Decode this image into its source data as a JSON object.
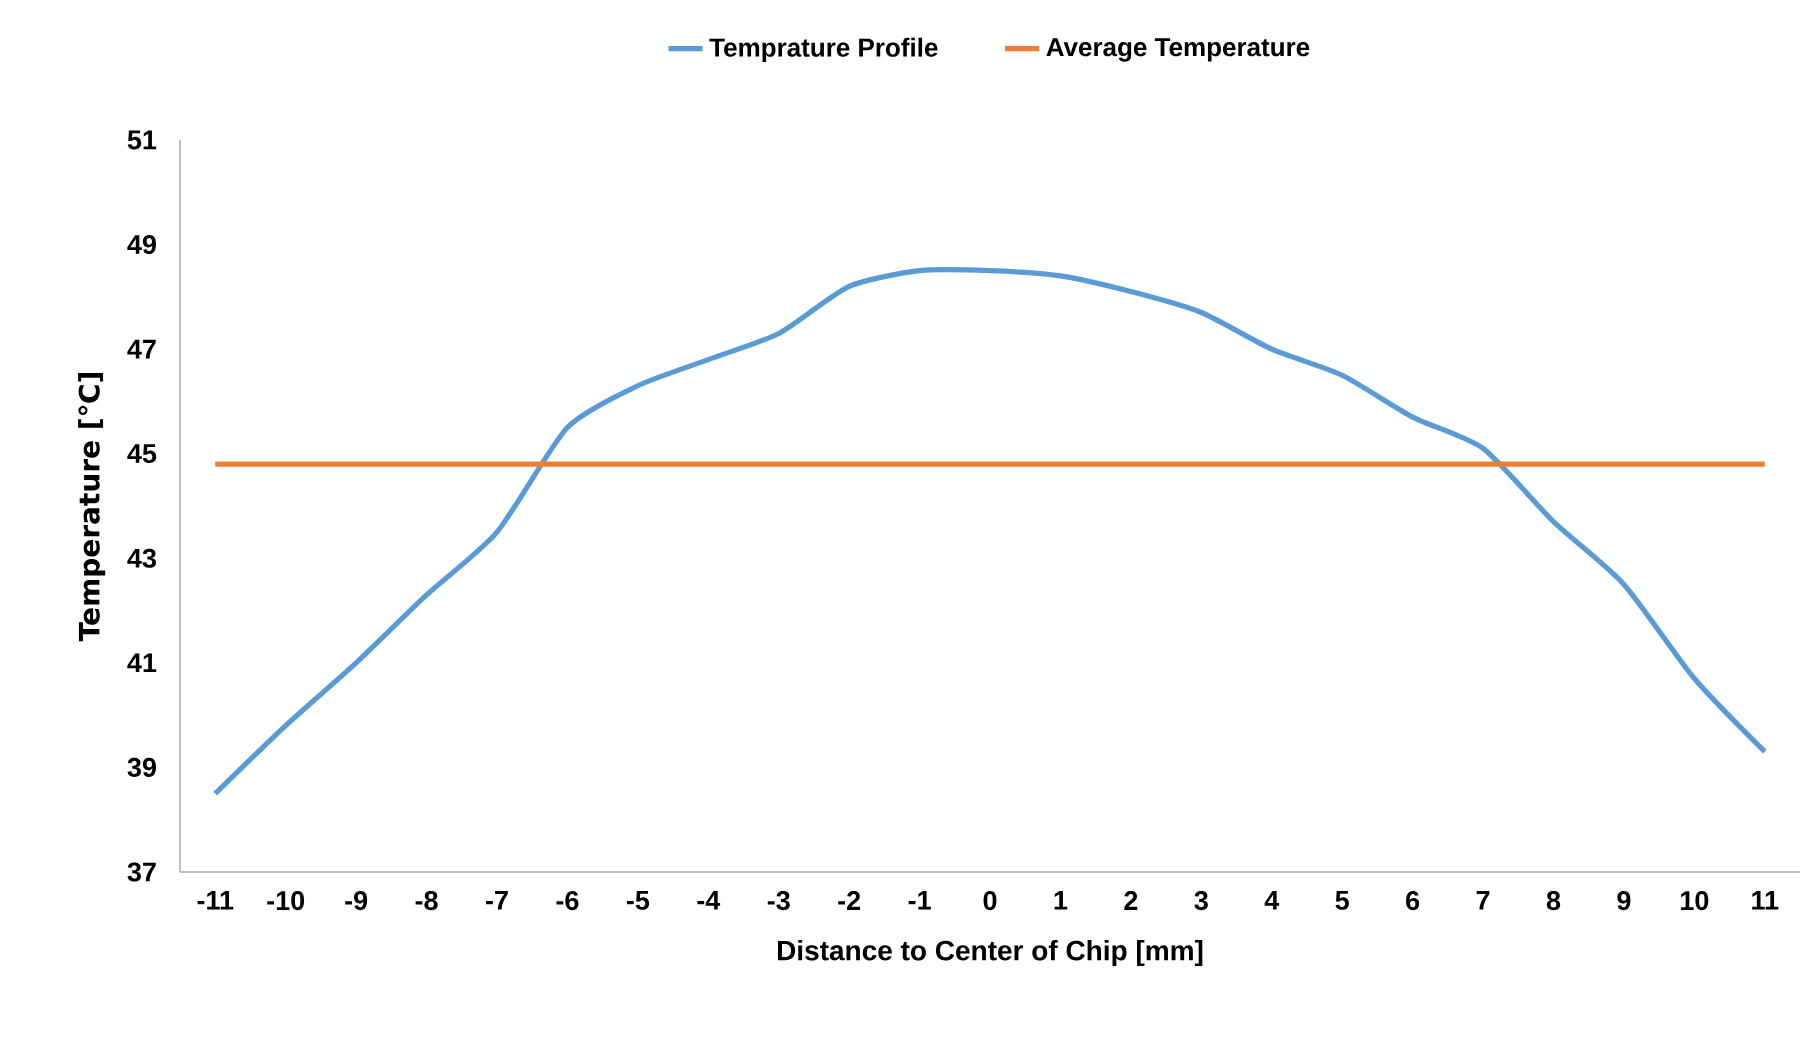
{
  "chart_data": {
    "type": "line",
    "xlabel": "Distance to Center of Chip [mm]",
    "ylabel": "Temperature [℃]",
    "categories": [
      "-11",
      "-10",
      "-9",
      "-8",
      "-7",
      "-6",
      "-5",
      "-4",
      "-3",
      "-2",
      "-1",
      "0",
      "1",
      "2",
      "3",
      "4",
      "5",
      "6",
      "7",
      "8",
      "9",
      "10",
      "11"
    ],
    "series": [
      {
        "name": "Temprature Profile",
        "color": "#5b9bd5",
        "values": [
          38.5,
          39.8,
          41.0,
          42.3,
          43.5,
          45.5,
          46.3,
          46.8,
          47.3,
          48.2,
          48.5,
          48.5,
          48.4,
          48.1,
          47.7,
          47.0,
          46.5,
          45.7,
          45.1,
          43.7,
          42.5,
          40.7,
          39.3
        ]
      },
      {
        "name": "Average Temperature",
        "color": "#ed7d31",
        "values": [
          44.8,
          44.8,
          44.8,
          44.8,
          44.8,
          44.8,
          44.8,
          44.8,
          44.8,
          44.8,
          44.8,
          44.8,
          44.8,
          44.8,
          44.8,
          44.8,
          44.8,
          44.8,
          44.8,
          44.8,
          44.8,
          44.8,
          44.8
        ]
      }
    ],
    "ylim": [
      37,
      51
    ],
    "yticks": [
      37,
      39,
      41,
      43,
      45,
      47,
      49,
      51
    ],
    "grid": false,
    "legend": "top",
    "marker": "none",
    "line_style": "solid"
  }
}
